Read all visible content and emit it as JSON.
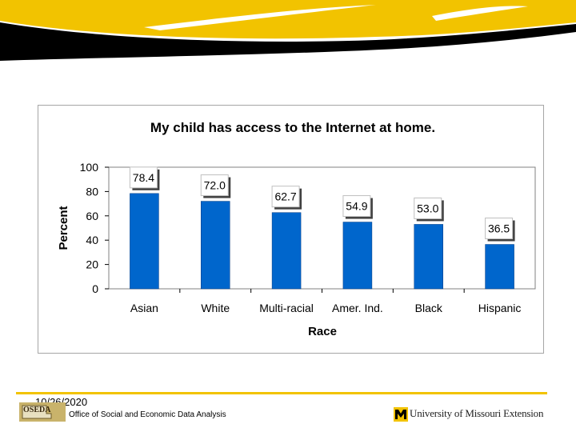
{
  "footer": {
    "date": "10/26/2020",
    "office": "Office of Social and Economic Data Analysis",
    "logo_text": "OSEDA",
    "extension": "University of Missouri Extension"
  },
  "colors": {
    "bar": "#0066cc",
    "accent_yellow": "#f2c300",
    "header_black": "#000000"
  },
  "chart_data": {
    "type": "bar",
    "title": "My child has access to the Internet at home.",
    "xlabel": "Race",
    "ylabel": "Percent",
    "categories": [
      "Asian",
      "White",
      "Multi-racial",
      "Amer. Ind.",
      "Black",
      "Hispanic"
    ],
    "values": [
      78.4,
      72.0,
      62.7,
      54.9,
      53.0,
      36.5
    ],
    "data_labels": [
      "78.4",
      "72.0",
      "62.7",
      "54.9",
      "53.0",
      "36.5"
    ],
    "yticks": [
      "0",
      "20",
      "40",
      "60",
      "80",
      "100"
    ],
    "ylim": [
      0,
      100
    ],
    "grid": false,
    "legend": "none"
  }
}
